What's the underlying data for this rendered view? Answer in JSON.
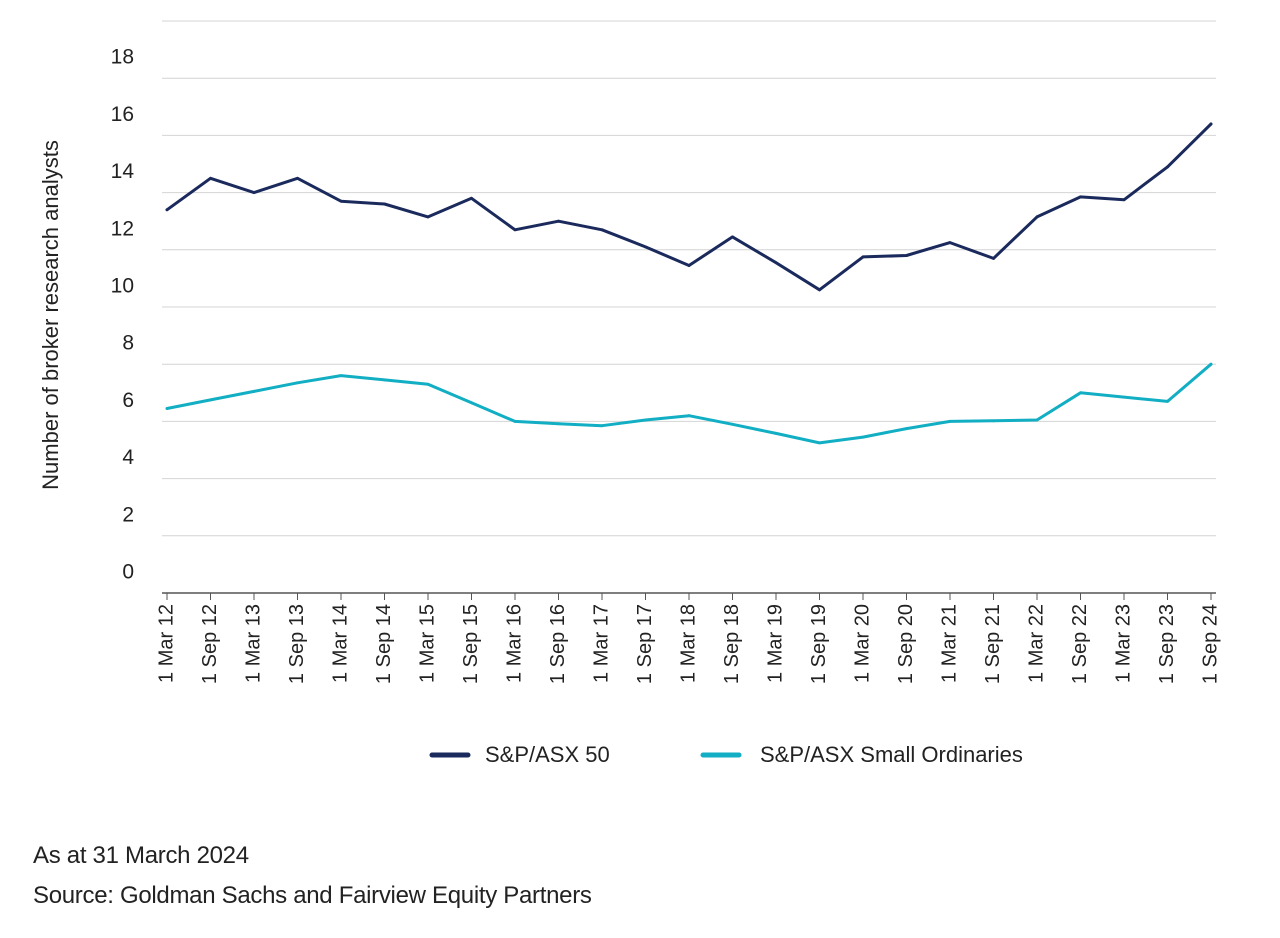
{
  "chart_data": {
    "type": "line",
    "title": "",
    "xlabel": "",
    "ylabel": "Number of broker research analysts",
    "ylim": [
      0,
      20
    ],
    "yticks": [
      0,
      2,
      4,
      6,
      8,
      10,
      12,
      14,
      16,
      18
    ],
    "grid": true,
    "legend_position": "bottom",
    "categories": [
      "1 Mar 12",
      "1 Sep 12",
      "1 Mar 13",
      "1 Sep 13",
      "1 Mar 14",
      "1 Sep 14",
      "1 Mar 15",
      "1 Sep 15",
      "1 Mar 16",
      "1 Sep 16",
      "1 Mar 17",
      "1 Sep 17",
      "1 Mar 18",
      "1 Sep 18",
      "1 Mar 19",
      "1 Sep 19",
      "1 Mar 20",
      "1 Sep 20",
      "1 Mar 21",
      "1 Sep 21",
      "1 Mar 22",
      "1 Sep 22",
      "1 Mar 23",
      "1 Sep 23",
      "1 Sep 24"
    ],
    "series": [
      {
        "name": "S&P/ASX 50",
        "color": "#1b2a5c",
        "values": [
          13.4,
          14.5,
          14.0,
          14.5,
          13.7,
          13.6,
          13.15,
          13.8,
          12.7,
          13.0,
          12.7,
          12.1,
          11.45,
          12.45,
          11.55,
          10.6,
          11.75,
          11.8,
          12.25,
          11.7,
          13.15,
          13.85,
          13.75,
          14.9,
          16.4
        ]
      },
      {
        "name": "S&P/ASX Small Ordinaries",
        "color": "#12aec3",
        "values": [
          6.45,
          6.75,
          7.05,
          7.35,
          7.6,
          7.45,
          7.3,
          6.65,
          6.0,
          5.92,
          5.85,
          6.05,
          6.2,
          5.9,
          5.58,
          5.25,
          5.45,
          5.75,
          6.0,
          6.02,
          6.05,
          7.0,
          6.85,
          6.7,
          8.0
        ]
      }
    ]
  },
  "footnotes": {
    "as_at": "As at 31 March 2024",
    "source": "Source: Goldman Sachs and Fairview Equity Partners"
  }
}
